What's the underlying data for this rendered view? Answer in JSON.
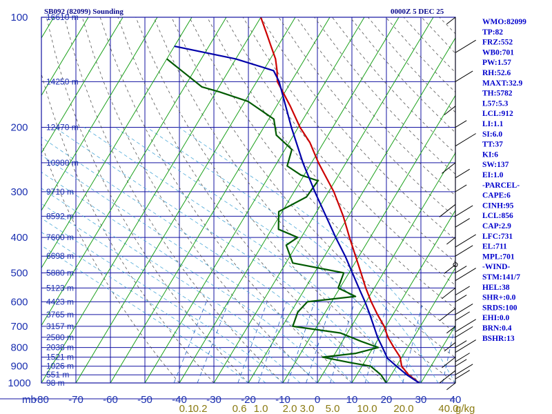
{
  "header": {
    "station": "SB092 (82099) Sounding",
    "time": "0000Z  5 DEC 25"
  },
  "indices": [
    "WMO:82099",
    "TP:82",
    "FRZ:552",
    "WB0:701",
    "PW:1.57",
    "RH:52.6",
    "MAXT:32.9",
    "TH:5782",
    "L57:5.3",
    "LCL:912",
    "LI:1.1",
    "SI:6.0",
    "TT:37",
    "KI:6",
    "SW:137",
    "EI:1.0",
    "-PARCEL-",
    "CAPE:6",
    "CINH:95",
    "LCL:856",
    "CAP:2.9",
    "LFC:731",
    "EL:711",
    "MPL:701",
    "-WIND-",
    "STM:141/7",
    "HEL:38",
    "SHR+:0.0",
    "SRDS:100",
    "EHI:0.0",
    "BRN:0.4",
    "BSHR:13"
  ],
  "chart_data": {
    "type": "line",
    "title": "SB092 (82099) Sounding",
    "subtitle": "0000Z  5 DEC 25",
    "xlabel": "",
    "ylabel": "mb",
    "xlim": [
      -80,
      40
    ],
    "ylim": [
      1000,
      100
    ],
    "y_scale": "log",
    "grid": true,
    "legend": "none",
    "pressure_ticks": [
      {
        "p": 100,
        "label": "100"
      },
      {
        "p": 200,
        "label": "200"
      },
      {
        "p": 300,
        "label": "300"
      },
      {
        "p": 400,
        "label": "400"
      },
      {
        "p": 500,
        "label": "500"
      },
      {
        "p": 600,
        "label": "600"
      },
      {
        "p": 700,
        "label": "700"
      },
      {
        "p": 800,
        "label": "800"
      },
      {
        "p": 900,
        "label": "900"
      },
      {
        "p": 1000,
        "label": "1000"
      }
    ],
    "axis_unit_label": "mb",
    "temperature_ticks": [
      {
        "t": -80,
        "label": "-80"
      },
      {
        "t": -70,
        "label": "-70"
      },
      {
        "t": -60,
        "label": "-60"
      },
      {
        "t": -50,
        "label": "-50"
      },
      {
        "t": -40,
        "label": "-40"
      },
      {
        "t": -30,
        "label": "-30"
      },
      {
        "t": -20,
        "label": "-20"
      },
      {
        "t": -10,
        "label": "-10"
      },
      {
        "t": 0,
        "label": "0"
      },
      {
        "t": 10,
        "label": "10"
      },
      {
        "t": 20,
        "label": "20"
      },
      {
        "t": 30,
        "label": "30"
      },
      {
        "t": 40,
        "label": "40"
      }
    ],
    "height_labels": [
      {
        "p": 100,
        "label": "16610 m"
      },
      {
        "p": 150,
        "label": "14250 m"
      },
      {
        "p": 200,
        "label": "12470 m"
      },
      {
        "p": 250,
        "label": "10980 m"
      },
      {
        "p": 300,
        "label": "9710 m"
      },
      {
        "p": 350,
        "label": "8592 m"
      },
      {
        "p": 400,
        "label": "7600 m"
      },
      {
        "p": 450,
        "label": "6698 m"
      },
      {
        "p": 500,
        "label": "5880 m"
      },
      {
        "p": 550,
        "label": "5123 m"
      },
      {
        "p": 600,
        "label": "4423 m"
      },
      {
        "p": 650,
        "label": "3765 m"
      },
      {
        "p": 700,
        "label": "3157 m"
      },
      {
        "p": 750,
        "label": "2580 m"
      },
      {
        "p": 800,
        "label": "2038 m"
      },
      {
        "p": 850,
        "label": "1521 m"
      },
      {
        "p": 900,
        "label": "1026 m"
      },
      {
        "p": 950,
        "label": "551 m"
      },
      {
        "p": 1000,
        "label": "98 m"
      }
    ],
    "mixing_ratio_labels": [
      {
        "w": 0.1,
        "label": "0.1"
      },
      {
        "w": 0.2,
        "label": "0.2"
      },
      {
        "w": 0.6,
        "label": "0.6"
      },
      {
        "w": 1.0,
        "label": "1.0"
      },
      {
        "w": 2.0,
        "label": "2.0"
      },
      {
        "w": 3.0,
        "label": "3.0"
      },
      {
        "w": 5.0,
        "label": "5.0"
      },
      {
        "w": 10.0,
        "label": "10.0"
      },
      {
        "w": 20.0,
        "label": "20.0"
      },
      {
        "w": 40.0,
        "label": "40.0"
      }
    ],
    "mixing_ratio_unit": "g/kg",
    "series": [
      {
        "key": "temperature",
        "color": "#cc0000",
        "points": [
          {
            "p": 1000,
            "t": 29.5
          },
          {
            "p": 950,
            "t": 25.0
          },
          {
            "p": 900,
            "t": 21.5
          },
          {
            "p": 850,
            "t": 19.5
          },
          {
            "p": 800,
            "t": 16.0
          },
          {
            "p": 750,
            "t": 12.5
          },
          {
            "p": 700,
            "t": 9.5
          },
          {
            "p": 650,
            "t": 5.5
          },
          {
            "p": 600,
            "t": 1.5
          },
          {
            "p": 550,
            "t": -2.5
          },
          {
            "p": 500,
            "t": -6.5
          },
          {
            "p": 450,
            "t": -11.0
          },
          {
            "p": 400,
            "t": -16.0
          },
          {
            "p": 350,
            "t": -21.5
          },
          {
            "p": 300,
            "t": -28.5
          },
          {
            "p": 250,
            "t": -38.0
          },
          {
            "p": 220,
            "t": -44.0
          },
          {
            "p": 200,
            "t": -49.5
          },
          {
            "p": 175,
            "t": -56.0
          },
          {
            "p": 150,
            "t": -64.0
          },
          {
            "p": 140,
            "t": -66.0
          },
          {
            "p": 130,
            "t": -68.5
          },
          {
            "p": 120,
            "t": -72.0
          },
          {
            "p": 112,
            "t": -75.0
          },
          {
            "p": 100,
            "t": -80.0
          }
        ]
      },
      {
        "key": "dewpoint",
        "color": "#005a00",
        "points": [
          {
            "p": 1000,
            "t": 20.0
          },
          {
            "p": 950,
            "t": 17.0
          },
          {
            "p": 900,
            "t": 12.5
          },
          {
            "p": 880,
            "t": 6.0
          },
          {
            "p": 850,
            "t": -3.0
          },
          {
            "p": 830,
            "t": 6.0
          },
          {
            "p": 800,
            "t": 11.5
          },
          {
            "p": 770,
            "t": 5.5
          },
          {
            "p": 730,
            "t": -2.0
          },
          {
            "p": 700,
            "t": -17.0
          },
          {
            "p": 640,
            "t": -18.0
          },
          {
            "p": 600,
            "t": -17.0
          },
          {
            "p": 580,
            "t": -4.0
          },
          {
            "p": 550,
            "t": -10.5
          },
          {
            "p": 500,
            "t": -11.5
          },
          {
            "p": 470,
            "t": -28.0
          },
          {
            "p": 420,
            "t": -33.0
          },
          {
            "p": 400,
            "t": -31.0
          },
          {
            "p": 380,
            "t": -38.0
          },
          {
            "p": 340,
            "t": -41.0
          },
          {
            "p": 310,
            "t": -35.5
          },
          {
            "p": 280,
            "t": -35.0
          },
          {
            "p": 270,
            "t": -41.0
          },
          {
            "p": 255,
            "t": -46.5
          },
          {
            "p": 230,
            "t": -48.0
          },
          {
            "p": 210,
            "t": -55.0
          },
          {
            "p": 190,
            "t": -58.5
          },
          {
            "p": 170,
            "t": -69.0
          },
          {
            "p": 160,
            "t": -79.0
          },
          {
            "p": 155,
            "t": -85.0
          },
          {
            "p": 130,
            "t": -100.0
          }
        ]
      },
      {
        "key": "parcel",
        "color": "#0000aa",
        "points": [
          {
            "p": 1000,
            "t": 29.5
          },
          {
            "p": 950,
            "t": 24.5
          },
          {
            "p": 900,
            "t": 20.0
          },
          {
            "p": 856,
            "t": 16.0
          },
          {
            "p": 800,
            "t": 12.7
          },
          {
            "p": 750,
            "t": 9.5
          },
          {
            "p": 700,
            "t": 6.5
          },
          {
            "p": 650,
            "t": 3.3
          },
          {
            "p": 600,
            "t": -0.3
          },
          {
            "p": 550,
            "t": -4.5
          },
          {
            "p": 500,
            "t": -9.0
          },
          {
            "p": 450,
            "t": -14.0
          },
          {
            "p": 400,
            "t": -20.0
          },
          {
            "p": 350,
            "t": -26.5
          },
          {
            "p": 300,
            "t": -34.0
          },
          {
            "p": 250,
            "t": -42.5
          },
          {
            "p": 200,
            "t": -52.0
          },
          {
            "p": 150,
            "t": -63.5
          },
          {
            "p": 140,
            "t": -67.0
          },
          {
            "p": 130,
            "t": -80.0
          },
          {
            "p": 120,
            "t": -100.0
          }
        ]
      }
    ]
  }
}
